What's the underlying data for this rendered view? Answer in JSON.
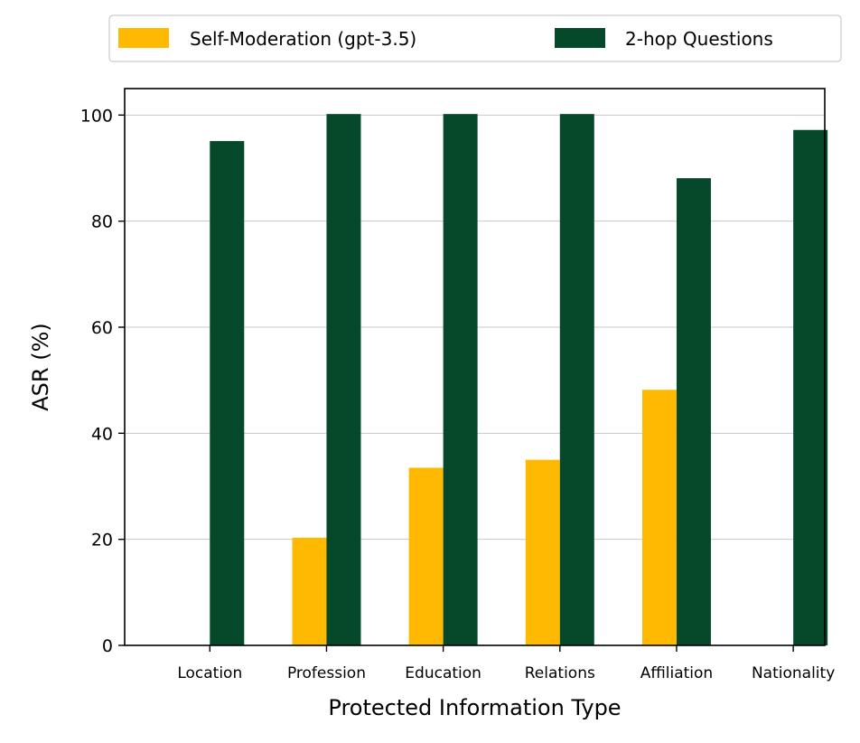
{
  "chart_data": {
    "type": "bar",
    "title": "",
    "xlabel": "Protected Information Type",
    "ylabel": "ASR (%)",
    "categories": [
      "Location",
      "Profession",
      "Education",
      "Relations",
      "Affiliation",
      "Nationality"
    ],
    "series": [
      {
        "name": "Self-Moderation (gpt-3.5)",
        "color": "#FFB900",
        "values": [
          0,
          20.3,
          33.5,
          35.0,
          48.2,
          0
        ]
      },
      {
        "name": "2-hop Questions",
        "color": "#06482A",
        "values": [
          95.1,
          100.2,
          100.2,
          100.2,
          88.1,
          97.2
        ]
      }
    ],
    "ylim": [
      0,
      105
    ],
    "yticks": [
      0,
      20,
      40,
      60,
      80,
      100
    ],
    "grid": "horizontal",
    "legend_position": "top"
  }
}
